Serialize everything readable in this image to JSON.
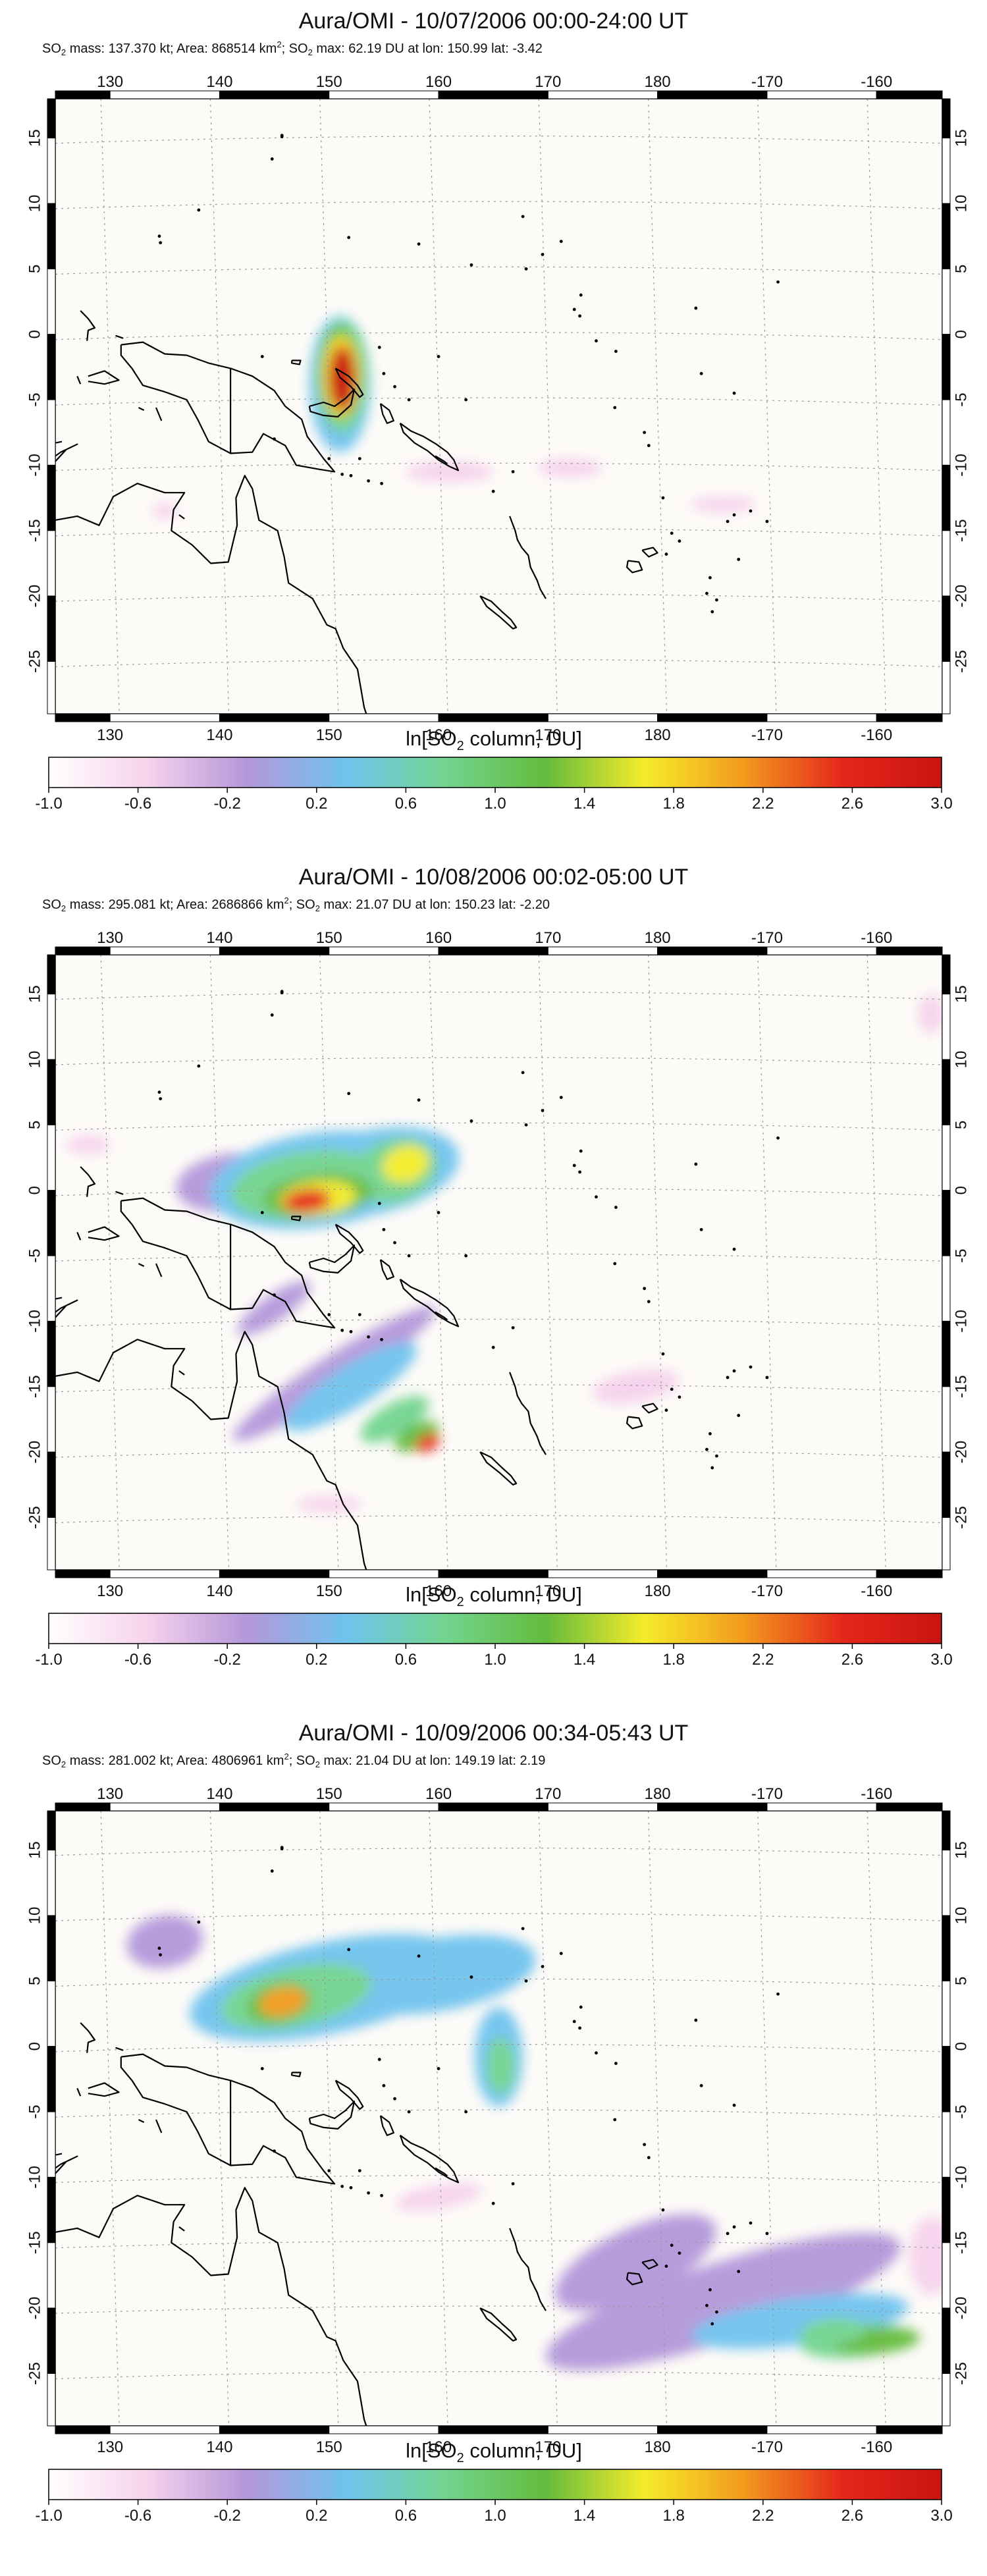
{
  "panels": [
    {
      "title": "Aura/OMI - 10/07/2006 00:00-24:00 UT",
      "stats": {
        "mass_label": "SO",
        "mass_sub": "2",
        "mass_text": " mass: 137.370 kt; Area: 868514 km",
        "area_sup": "2",
        "max_label": "; SO",
        "max_sub": "2",
        "max_text": " max: 62.19 DU at lon: 150.99 lat: -3.42"
      }
    },
    {
      "title": "Aura/OMI - 10/08/2006 00:02-05:00 UT",
      "stats": {
        "mass_label": "SO",
        "mass_sub": "2",
        "mass_text": " mass: 295.081 kt; Area: 2686866 km",
        "area_sup": "2",
        "max_label": "; SO",
        "max_sub": "2",
        "max_text": " max: 21.07 DU at lon: 150.23 lat: -2.20"
      }
    },
    {
      "title": "Aura/OMI - 10/09/2006 00:34-05:43 UT",
      "stats": {
        "mass_label": "SO",
        "mass_sub": "2",
        "mass_text": " mass: 281.002 kt; Area: 4806961 km",
        "area_sup": "2",
        "max_label": "; SO",
        "max_sub": "2",
        "max_text": " max: 21.04 DU at lon: 149.19 lat: 2.19"
      }
    }
  ],
  "map_axes": {
    "lon_ticks": [
      "130",
      "140",
      "150",
      "160",
      "170",
      "180",
      "-170",
      "-160"
    ],
    "lat_ticks": [
      "15",
      "10",
      "5",
      "0",
      "-5",
      "-10",
      "-15",
      "-20",
      "-25"
    ]
  },
  "colorbar": {
    "label_pre": "ln[SO",
    "label_sub": "2",
    "label_post": " column, DU]",
    "ticks": [
      "-1.0",
      "-0.6",
      "-0.2",
      "0.2",
      "0.6",
      "1.0",
      "1.4",
      "1.8",
      "2.2",
      "2.6",
      "3.0"
    ],
    "range": [
      -1.0,
      3.0
    ],
    "colors": [
      "#ffffff",
      "#f6d2ec",
      "#b497da",
      "#6fc3ee",
      "#72d48f",
      "#64bb3e",
      "#f4ec2a",
      "#f39b1d",
      "#e5271c",
      "#c81410"
    ]
  }
}
